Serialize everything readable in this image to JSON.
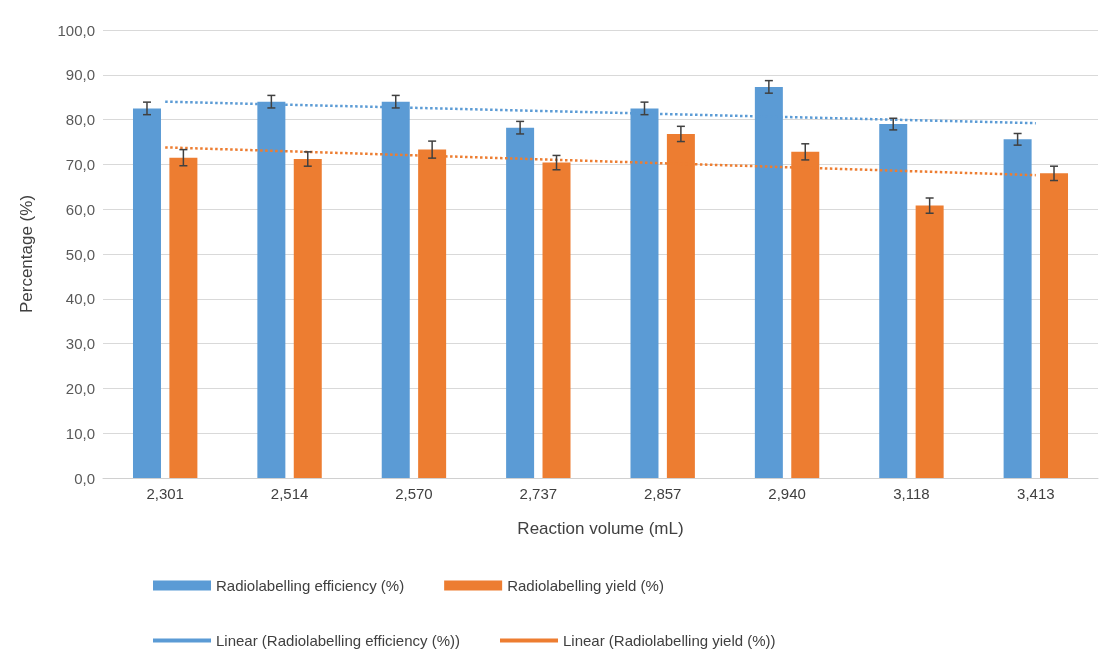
{
  "chart_data": {
    "type": "bar",
    "xlabel": "Reaction volume (mL)",
    "ylabel": "Percentage (%)",
    "categories": [
      "2,301",
      "2,514",
      "2,570",
      "2,737",
      "2,857",
      "2,940",
      "3,118",
      "3,413"
    ],
    "series": [
      {
        "name": "Radiolabelling efficiency (%)",
        "color": "#5b9bd5",
        "values": [
          82.5,
          84.0,
          84.0,
          78.2,
          82.5,
          87.3,
          79.0,
          75.6
        ],
        "errors": [
          1.4,
          1.4,
          1.4,
          1.4,
          1.4,
          1.4,
          1.3,
          1.3
        ]
      },
      {
        "name": "Radiolabelling yield (%)",
        "color": "#ed7d31",
        "values": [
          71.5,
          71.2,
          73.3,
          70.4,
          76.8,
          72.8,
          60.8,
          68.0
        ],
        "errors": [
          1.8,
          1.6,
          1.9,
          1.6,
          1.7,
          1.8,
          1.7,
          1.6
        ]
      },
      {
        "name": "Linear (Radiolabelling efficiency (%))",
        "type": "line",
        "color": "#5b9bd5",
        "line_style": "dotted",
        "marker": "none",
        "x": [
          "2,301",
          "3,413"
        ],
        "values": [
          84.0,
          79.2
        ]
      },
      {
        "name": "Linear (Radiolabelling yield (%))",
        "type": "line",
        "color": "#ed7d31",
        "line_style": "dotted",
        "marker": "none",
        "x": [
          "2,301",
          "3,413"
        ],
        "values": [
          73.8,
          67.6
        ]
      }
    ],
    "ylim": [
      0,
      100
    ],
    "yticks": [
      {
        "value": 0,
        "label": "0,0"
      },
      {
        "value": 10,
        "label": "10,0"
      },
      {
        "value": 20,
        "label": "20,0"
      },
      {
        "value": 30,
        "label": "30,0"
      },
      {
        "value": 40,
        "label": "40,0"
      },
      {
        "value": 50,
        "label": "50,0"
      },
      {
        "value": 60,
        "label": "60,0"
      },
      {
        "value": 70,
        "label": "70,0"
      },
      {
        "value": 80,
        "label": "80,0"
      },
      {
        "value": 90,
        "label": "90,0"
      },
      {
        "value": 100,
        "label": "100,0"
      }
    ],
    "grid": "y",
    "legend": "bottom"
  }
}
